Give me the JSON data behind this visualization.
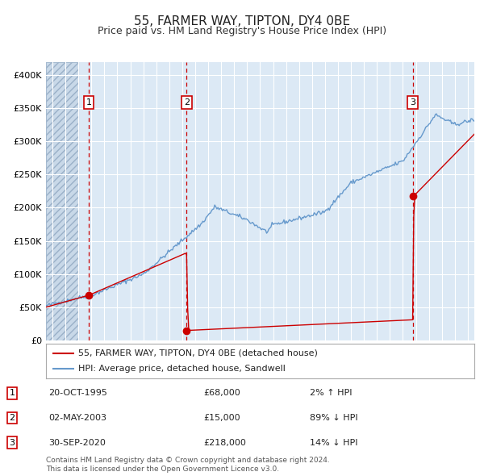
{
  "title": "55, FARMER WAY, TIPTON, DY4 0BE",
  "subtitle": "Price paid vs. HM Land Registry's House Price Index (HPI)",
  "legend_line1": "55, FARMER WAY, TIPTON, DY4 0BE (detached house)",
  "legend_line2": "HPI: Average price, detached house, Sandwell",
  "footer1": "Contains HM Land Registry data © Crown copyright and database right 2024.",
  "footer2": "This data is licensed under the Open Government Licence v3.0.",
  "transactions": [
    {
      "num": 1,
      "date": "20-OCT-1995",
      "price": 68000,
      "pct": "2%",
      "dir": "↑",
      "year": 1995.8
    },
    {
      "num": 2,
      "date": "02-MAY-2003",
      "price": 15000,
      "pct": "89%",
      "dir": "↓",
      "year": 2003.33
    },
    {
      "num": 3,
      "date": "30-SEP-2020",
      "price": 218000,
      "pct": "14%",
      "dir": "↓",
      "year": 2020.75
    }
  ],
  "hpi_color": "#6699cc",
  "price_color": "#cc0000",
  "vline_color": "#cc0000",
  "marker_color": "#cc0000",
  "bg_color": "#dce9f5",
  "hatch_bg": "#c8d8e8",
  "grid_color": "#ffffff",
  "ylim": [
    0,
    420000
  ],
  "yticks": [
    0,
    50000,
    100000,
    150000,
    200000,
    250000,
    300000,
    350000,
    400000
  ],
  "xlim_start": 1992.5,
  "xlim_end": 2025.5,
  "hatch_end": 1995.0
}
